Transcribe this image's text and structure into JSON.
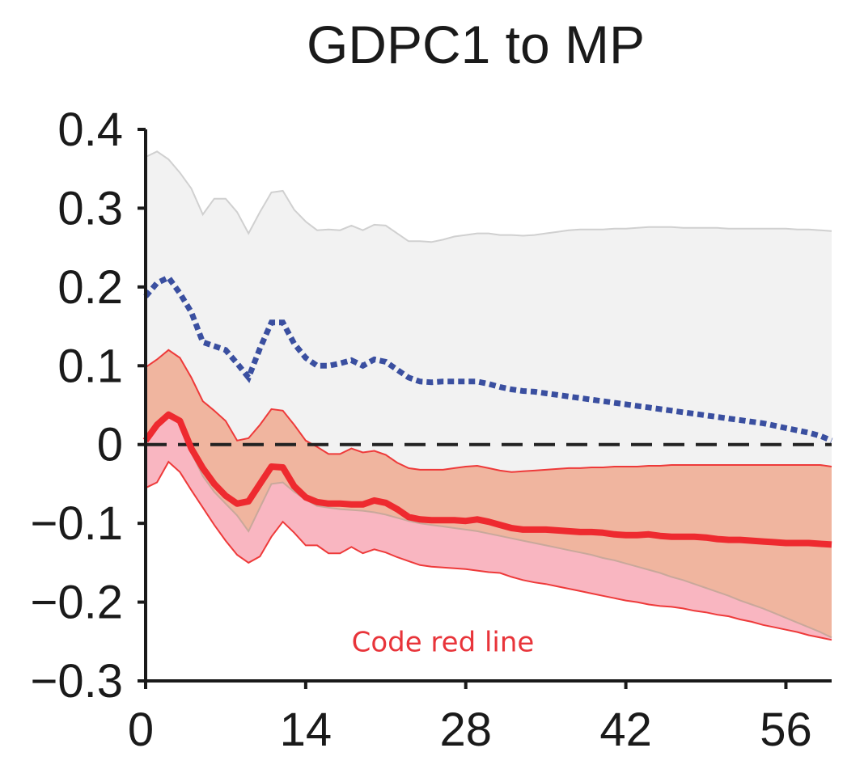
{
  "chart_data": {
    "type": "line",
    "title": "GDPC1 to MP",
    "xlabel": "",
    "ylabel": "",
    "xlim": [
      0,
      60
    ],
    "ylim": [
      -0.3,
      0.4
    ],
    "x_ticks": [
      0,
      14,
      28,
      42,
      56
    ],
    "x_tick_labels": [
      "0",
      "14",
      "28",
      "42",
      "56"
    ],
    "y_ticks": [
      -0.3,
      -0.2,
      -0.1,
      0,
      0.1,
      0.2,
      0.3,
      0.4
    ],
    "y_tick_labels": [
      "−0.3",
      "−0.2",
      "−0.1",
      "0",
      "0.1",
      "0.2",
      "0.3",
      "0.4"
    ],
    "grid": false,
    "legend": "none",
    "annotation": {
      "text": "Code red line",
      "x": 26,
      "y": -0.25
    },
    "colors": {
      "red_line": "#ee2a2f",
      "blue_dotted": "#3a4fa0",
      "gray_band_fill": "#f2f2f2",
      "gray_band_edge": "#d0d0d0",
      "orange_band": "#f0b59f",
      "pink_band": "#f9b6c1",
      "band_edge": "#ee3a3a",
      "zero_line": "#222222",
      "annotation": "#e8343a"
    },
    "x": [
      0,
      1,
      2,
      3,
      4,
      5,
      6,
      7,
      8,
      9,
      10,
      11,
      12,
      13,
      14,
      15,
      16,
      17,
      18,
      19,
      20,
      21,
      22,
      23,
      24,
      25,
      26,
      27,
      28,
      29,
      30,
      31,
      32,
      33,
      34,
      35,
      36,
      37,
      38,
      39,
      40,
      41,
      42,
      43,
      44,
      45,
      46,
      47,
      48,
      49,
      50,
      51,
      52,
      53,
      54,
      55,
      56,
      57,
      58,
      59,
      60
    ],
    "series": [
      {
        "role": "gray-band-upper",
        "values": [
          0.365,
          0.372,
          0.362,
          0.345,
          0.325,
          0.292,
          0.312,
          0.312,
          0.295,
          0.268,
          0.295,
          0.32,
          0.322,
          0.298,
          0.283,
          0.272,
          0.273,
          0.272,
          0.278,
          0.272,
          0.279,
          0.278,
          0.268,
          0.258,
          0.258,
          0.257,
          0.26,
          0.264,
          0.266,
          0.268,
          0.268,
          0.266,
          0.266,
          0.265,
          0.266,
          0.268,
          0.27,
          0.272,
          0.273,
          0.273,
          0.273,
          0.274,
          0.274,
          0.275,
          0.276,
          0.276,
          0.276,
          0.275,
          0.275,
          0.275,
          0.275,
          0.274,
          0.274,
          0.274,
          0.274,
          0.274,
          0.274,
          0.273,
          0.273,
          0.272,
          0.271
        ]
      },
      {
        "role": "blue-dotted",
        "values": [
          0.188,
          0.205,
          0.212,
          0.192,
          0.168,
          0.13,
          0.125,
          0.12,
          0.103,
          0.085,
          0.122,
          0.155,
          0.155,
          0.128,
          0.11,
          0.1,
          0.1,
          0.103,
          0.107,
          0.1,
          0.108,
          0.105,
          0.095,
          0.085,
          0.08,
          0.079,
          0.08,
          0.08,
          0.08,
          0.08,
          0.077,
          0.073,
          0.07,
          0.068,
          0.067,
          0.065,
          0.063,
          0.061,
          0.059,
          0.057,
          0.055,
          0.053,
          0.051,
          0.049,
          0.047,
          0.045,
          0.043,
          0.041,
          0.039,
          0.037,
          0.035,
          0.033,
          0.031,
          0.029,
          0.027,
          0.024,
          0.021,
          0.018,
          0.015,
          0.011,
          0.005
        ]
      },
      {
        "role": "red-band-upper",
        "values": [
          0.098,
          0.108,
          0.12,
          0.11,
          0.085,
          0.055,
          0.043,
          0.03,
          0.005,
          0.008,
          0.025,
          0.045,
          0.043,
          0.025,
          0.005,
          -0.003,
          -0.012,
          -0.012,
          -0.005,
          -0.01,
          -0.008,
          -0.013,
          -0.023,
          -0.03,
          -0.032,
          -0.032,
          -0.032,
          -0.03,
          -0.028,
          -0.027,
          -0.03,
          -0.033,
          -0.035,
          -0.034,
          -0.033,
          -0.032,
          -0.031,
          -0.03,
          -0.03,
          -0.029,
          -0.029,
          -0.028,
          -0.028,
          -0.028,
          -0.027,
          -0.027,
          -0.026,
          -0.026,
          -0.026,
          -0.026,
          -0.026,
          -0.026,
          -0.026,
          -0.026,
          -0.026,
          -0.026,
          -0.026,
          -0.026,
          -0.026,
          -0.026,
          -0.028
        ]
      },
      {
        "role": "red-solid",
        "values": [
          0.005,
          0.025,
          0.038,
          0.03,
          -0.005,
          -0.03,
          -0.05,
          -0.065,
          -0.075,
          -0.072,
          -0.05,
          -0.028,
          -0.029,
          -0.053,
          -0.067,
          -0.073,
          -0.075,
          -0.075,
          -0.076,
          -0.076,
          -0.071,
          -0.074,
          -0.082,
          -0.092,
          -0.095,
          -0.096,
          -0.096,
          -0.096,
          -0.097,
          -0.095,
          -0.098,
          -0.102,
          -0.106,
          -0.108,
          -0.108,
          -0.108,
          -0.109,
          -0.11,
          -0.111,
          -0.111,
          -0.112,
          -0.114,
          -0.115,
          -0.115,
          -0.114,
          -0.116,
          -0.117,
          -0.117,
          -0.117,
          -0.118,
          -0.12,
          -0.121,
          -0.121,
          -0.122,
          -0.123,
          -0.124,
          -0.125,
          -0.125,
          -0.125,
          -0.126,
          -0.127
        ]
      },
      {
        "role": "band-mid",
        "values": [
          0.005,
          0.025,
          0.038,
          0.03,
          -0.01,
          -0.04,
          -0.06,
          -0.075,
          -0.09,
          -0.11,
          -0.08,
          -0.05,
          -0.048,
          -0.06,
          -0.07,
          -0.078,
          -0.08,
          -0.082,
          -0.083,
          -0.084,
          -0.086,
          -0.089,
          -0.093,
          -0.097,
          -0.1,
          -0.102,
          -0.104,
          -0.106,
          -0.108,
          -0.11,
          -0.113,
          -0.116,
          -0.119,
          -0.122,
          -0.125,
          -0.128,
          -0.131,
          -0.134,
          -0.137,
          -0.14,
          -0.144,
          -0.147,
          -0.151,
          -0.155,
          -0.159,
          -0.163,
          -0.168,
          -0.172,
          -0.177,
          -0.182,
          -0.187,
          -0.192,
          -0.198,
          -0.203,
          -0.208,
          -0.214,
          -0.22,
          -0.226,
          -0.232,
          -0.238,
          -0.245
        ]
      },
      {
        "role": "red-band-lower",
        "values": [
          -0.055,
          -0.048,
          -0.022,
          -0.035,
          -0.058,
          -0.08,
          -0.102,
          -0.122,
          -0.14,
          -0.15,
          -0.142,
          -0.117,
          -0.098,
          -0.112,
          -0.128,
          -0.128,
          -0.138,
          -0.138,
          -0.13,
          -0.138,
          -0.133,
          -0.137,
          -0.143,
          -0.148,
          -0.153,
          -0.155,
          -0.156,
          -0.157,
          -0.158,
          -0.16,
          -0.162,
          -0.163,
          -0.168,
          -0.172,
          -0.175,
          -0.177,
          -0.18,
          -0.183,
          -0.186,
          -0.189,
          -0.192,
          -0.195,
          -0.198,
          -0.2,
          -0.203,
          -0.205,
          -0.206,
          -0.208,
          -0.211,
          -0.213,
          -0.216,
          -0.218,
          -0.222,
          -0.225,
          -0.229,
          -0.232,
          -0.235,
          -0.238,
          -0.242,
          -0.245,
          -0.248
        ]
      }
    ]
  }
}
